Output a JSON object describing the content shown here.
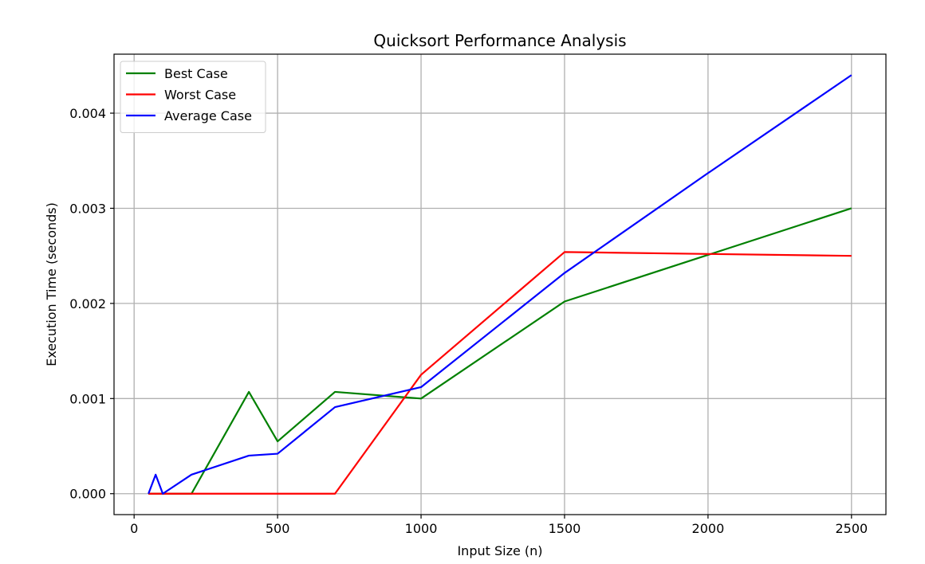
{
  "chart_data": {
    "type": "line",
    "title": "Quicksort Performance Analysis",
    "xlabel": "Input Size (n)",
    "ylabel": "Execution Time (seconds)",
    "xlim": [
      -70,
      2620
    ],
    "ylim": [
      -0.00022,
      0.00462
    ],
    "xticks": [
      0,
      500,
      1000,
      1500,
      2000,
      2500
    ],
    "xtick_labels": [
      "0",
      "500",
      "1000",
      "1500",
      "2000",
      "2500"
    ],
    "yticks": [
      0.0,
      0.001,
      0.002,
      0.003,
      0.004
    ],
    "ytick_labels": [
      "0.000",
      "0.001",
      "0.002",
      "0.003",
      "0.004"
    ],
    "grid": true,
    "legend_position": "top-left",
    "series": [
      {
        "name": "Best Case",
        "color": "#008000",
        "x": [
          50,
          75,
          100,
          200,
          400,
          500,
          700,
          1000,
          1500,
          2000,
          2500
        ],
        "y": [
          0.0,
          0.0,
          0.0,
          0.0,
          0.00107,
          0.00055,
          0.00107,
          0.001,
          0.00202,
          0.00251,
          0.003
        ]
      },
      {
        "name": "Worst Case",
        "color": "#ff0000",
        "x": [
          50,
          75,
          100,
          200,
          400,
          500,
          700,
          1000,
          1500,
          2000,
          2500
        ],
        "y": [
          0.0,
          0.0,
          0.0,
          0.0,
          0.0,
          0.0,
          0.0,
          0.00125,
          0.00254,
          0.00252,
          0.0025
        ]
      },
      {
        "name": "Average Case",
        "color": "#0000ff",
        "x": [
          50,
          75,
          100,
          200,
          400,
          500,
          700,
          1000,
          1500,
          2000,
          2500
        ],
        "y": [
          0.0,
          0.0002,
          0.0,
          0.0002,
          0.0004,
          0.00042,
          0.00091,
          0.00112,
          0.00232,
          0.00337,
          0.0044
        ]
      }
    ]
  }
}
